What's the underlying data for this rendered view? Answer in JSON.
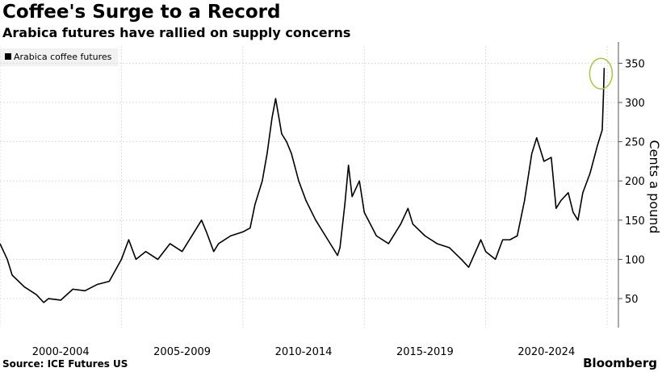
{
  "title": "Coffee's Surge to a Record",
  "subtitle": "Arabica futures have rallied on supply concerns",
  "source": "Source: ICE Futures US",
  "brand": "Bloomberg",
  "chart_data": {
    "type": "line",
    "title": "Coffee's Surge to a Record",
    "subtitle": "Arabica futures have rallied on supply concerns",
    "ylabel": "Cents a pound",
    "ylim": [
      13,
      372
    ],
    "xlim": [
      2000,
      2025
    ],
    "yticks": [
      50,
      100,
      150,
      200,
      250,
      300,
      350
    ],
    "xtick_labels": [
      "2000-2004",
      "2005-2009",
      "2010-2014",
      "2015-2019",
      "2020-2024"
    ],
    "grid": true,
    "legend": "top-left",
    "annotation": "circle around record high",
    "colors": {
      "line": "#000000",
      "highlight": "#a6c93c"
    },
    "series": [
      {
        "name": "Arabica coffee futures",
        "x": [
          2000.0,
          2000.3,
          2000.5,
          2001.0,
          2001.5,
          2001.8,
          2002.0,
          2002.5,
          2003.0,
          2003.5,
          2004.0,
          2004.5,
          2005.0,
          2005.3,
          2005.6,
          2006.0,
          2006.5,
          2007.0,
          2007.5,
          2008.0,
          2008.3,
          2008.5,
          2008.8,
          2009.0,
          2009.5,
          2010.0,
          2010.3,
          2010.5,
          2010.8,
          2011.0,
          2011.2,
          2011.35,
          2011.6,
          2011.8,
          2012.0,
          2012.3,
          2012.6,
          2013.0,
          2013.5,
          2013.9,
          2014.0,
          2014.2,
          2014.35,
          2014.5,
          2014.8,
          2015.0,
          2015.5,
          2016.0,
          2016.5,
          2016.8,
          2017.0,
          2017.5,
          2018.0,
          2018.5,
          2019.0,
          2019.3,
          2019.8,
          2020.0,
          2020.4,
          2020.7,
          2021.0,
          2021.3,
          2021.6,
          2021.9,
          2022.1,
          2022.4,
          2022.7,
          2022.9,
          2023.1,
          2023.4,
          2023.6,
          2023.8,
          2024.0,
          2024.3,
          2024.6,
          2024.8,
          2024.85,
          2024.88
        ],
        "y": [
          120,
          100,
          80,
          65,
          55,
          45,
          50,
          48,
          62,
          60,
          68,
          72,
          100,
          125,
          100,
          110,
          100,
          120,
          110,
          135,
          150,
          135,
          110,
          120,
          130,
          135,
          140,
          170,
          200,
          235,
          280,
          305,
          260,
          250,
          235,
          200,
          175,
          150,
          125,
          105,
          115,
          170,
          220,
          180,
          200,
          160,
          130,
          120,
          145,
          165,
          145,
          130,
          120,
          115,
          100,
          90,
          125,
          110,
          100,
          125,
          125,
          130,
          175,
          235,
          255,
          225,
          230,
          165,
          175,
          185,
          160,
          150,
          185,
          210,
          245,
          265,
          310,
          344
        ]
      }
    ]
  }
}
